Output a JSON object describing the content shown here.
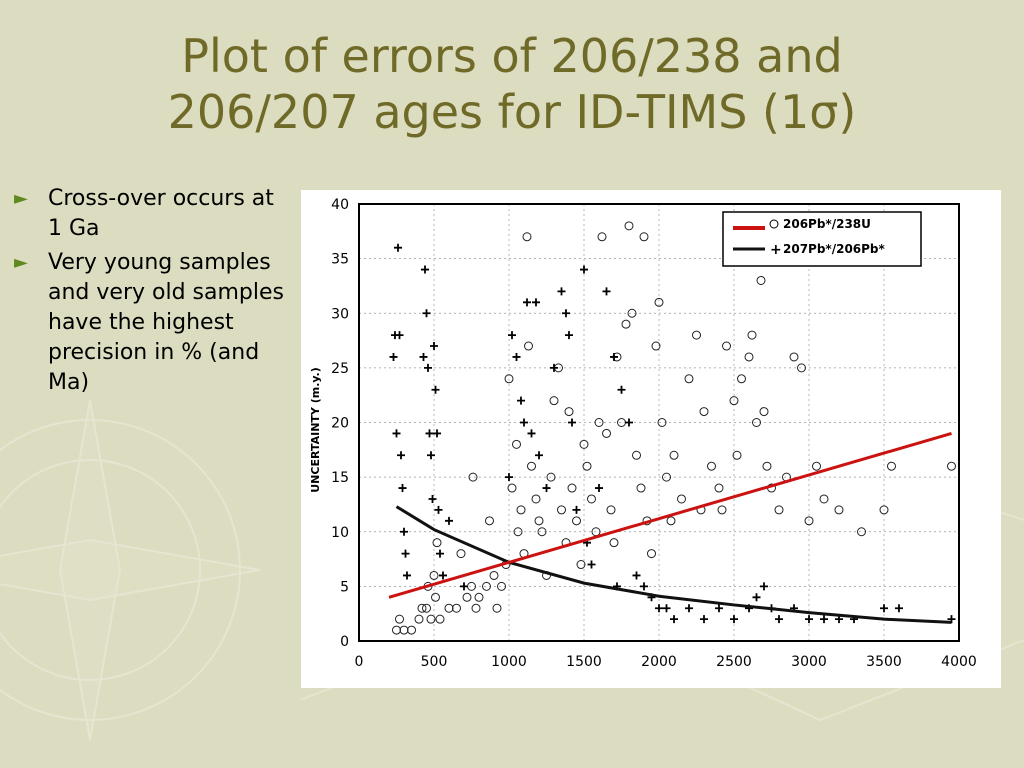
{
  "slide": {
    "title_line1": "Plot of errors of 206/238 and",
    "title_line2": "206/207 ages for ID-TIMS (1σ)",
    "bullets": [
      "Cross-over occurs at 1 Ga",
      "Very young samples and very old samples have the highest precision in % (and Ma)"
    ],
    "colors": {
      "title": "#6f6a28",
      "bullet_arrow": "#5f8a1e",
      "background": "#dcdcc0",
      "trend_238": "#cc1111",
      "trend_207": "#111111"
    },
    "icons": {
      "bullet": "triangle-right-icon",
      "background": "compass-watermark"
    }
  },
  "chart_data": {
    "type": "scatter",
    "title": "",
    "xlabel": "",
    "ylabel": "UNCERTAINTY (m.y.)",
    "xlim": [
      0,
      4000
    ],
    "ylim": [
      0,
      40
    ],
    "x_ticks": [
      "0",
      "500",
      "1000",
      "1500",
      "2000",
      "2500",
      "3000",
      "3500",
      "4000"
    ],
    "y_ticks": [
      "0",
      "5",
      "10",
      "15",
      "20",
      "25",
      "30",
      "35",
      "40"
    ],
    "legend_position": "top-right",
    "series": [
      {
        "name": "206Pb*/238U",
        "marker": "circle",
        "points": [
          [
            250,
            1
          ],
          [
            270,
            2
          ],
          [
            300,
            1
          ],
          [
            350,
            1
          ],
          [
            400,
            2
          ],
          [
            420,
            3
          ],
          [
            450,
            3
          ],
          [
            460,
            5
          ],
          [
            480,
            2
          ],
          [
            500,
            6
          ],
          [
            510,
            4
          ],
          [
            520,
            9
          ],
          [
            540,
            2
          ],
          [
            600,
            3
          ],
          [
            650,
            3
          ],
          [
            680,
            8
          ],
          [
            720,
            4
          ],
          [
            750,
            5
          ],
          [
            760,
            15
          ],
          [
            780,
            3
          ],
          [
            800,
            4
          ],
          [
            850,
            5
          ],
          [
            870,
            11
          ],
          [
            900,
            6
          ],
          [
            920,
            3
          ],
          [
            950,
            5
          ],
          [
            980,
            7
          ],
          [
            1000,
            24
          ],
          [
            1020,
            14
          ],
          [
            1050,
            18
          ],
          [
            1060,
            10
          ],
          [
            1080,
            12
          ],
          [
            1100,
            8
          ],
          [
            1120,
            37
          ],
          [
            1130,
            27
          ],
          [
            1150,
            16
          ],
          [
            1180,
            13
          ],
          [
            1200,
            11
          ],
          [
            1220,
            10
          ],
          [
            1250,
            6
          ],
          [
            1280,
            15
          ],
          [
            1300,
            22
          ],
          [
            1330,
            25
          ],
          [
            1350,
            12
          ],
          [
            1380,
            9
          ],
          [
            1400,
            21
          ],
          [
            1420,
            14
          ],
          [
            1450,
            11
          ],
          [
            1480,
            7
          ],
          [
            1500,
            18
          ],
          [
            1520,
            16
          ],
          [
            1550,
            13
          ],
          [
            1580,
            10
          ],
          [
            1600,
            20
          ],
          [
            1620,
            37
          ],
          [
            1650,
            19
          ],
          [
            1680,
            12
          ],
          [
            1700,
            9
          ],
          [
            1720,
            26
          ],
          [
            1750,
            20
          ],
          [
            1780,
            29
          ],
          [
            1800,
            38
          ],
          [
            1820,
            30
          ],
          [
            1850,
            17
          ],
          [
            1880,
            14
          ],
          [
            1900,
            37
          ],
          [
            1920,
            11
          ],
          [
            1950,
            8
          ],
          [
            1980,
            27
          ],
          [
            2000,
            31
          ],
          [
            2020,
            20
          ],
          [
            2050,
            15
          ],
          [
            2080,
            11
          ],
          [
            2100,
            17
          ],
          [
            2150,
            13
          ],
          [
            2200,
            24
          ],
          [
            2250,
            28
          ],
          [
            2280,
            12
          ],
          [
            2300,
            21
          ],
          [
            2350,
            16
          ],
          [
            2400,
            14
          ],
          [
            2420,
            12
          ],
          [
            2450,
            27
          ],
          [
            2500,
            22
          ],
          [
            2520,
            17
          ],
          [
            2550,
            24
          ],
          [
            2600,
            26
          ],
          [
            2620,
            28
          ],
          [
            2650,
            20
          ],
          [
            2680,
            33
          ],
          [
            2700,
            21
          ],
          [
            2720,
            16
          ],
          [
            2750,
            14
          ],
          [
            2800,
            12
          ],
          [
            2850,
            15
          ],
          [
            2900,
            26
          ],
          [
            2950,
            25
          ],
          [
            3000,
            11
          ],
          [
            3050,
            16
          ],
          [
            3100,
            13
          ],
          [
            3200,
            12
          ],
          [
            3350,
            10
          ],
          [
            3500,
            12
          ],
          [
            3550,
            16
          ],
          [
            3950,
            16
          ]
        ]
      },
      {
        "name": "207Pb*/206Pb*",
        "marker": "plus",
        "points": [
          [
            230,
            26
          ],
          [
            240,
            28
          ],
          [
            250,
            19
          ],
          [
            260,
            36
          ],
          [
            270,
            28
          ],
          [
            280,
            17
          ],
          [
            290,
            14
          ],
          [
            300,
            10
          ],
          [
            310,
            8
          ],
          [
            320,
            6
          ],
          [
            430,
            26
          ],
          [
            440,
            34
          ],
          [
            450,
            30
          ],
          [
            460,
            25
          ],
          [
            470,
            19
          ],
          [
            480,
            17
          ],
          [
            490,
            13
          ],
          [
            500,
            27
          ],
          [
            510,
            23
          ],
          [
            520,
            19
          ],
          [
            530,
            12
          ],
          [
            540,
            8
          ],
          [
            560,
            6
          ],
          [
            600,
            11
          ],
          [
            700,
            5
          ],
          [
            1000,
            15
          ],
          [
            1020,
            28
          ],
          [
            1050,
            26
          ],
          [
            1080,
            22
          ],
          [
            1100,
            20
          ],
          [
            1120,
            31
          ],
          [
            1150,
            19
          ],
          [
            1180,
            31
          ],
          [
            1200,
            17
          ],
          [
            1250,
            14
          ],
          [
            1300,
            25
          ],
          [
            1350,
            32
          ],
          [
            1380,
            30
          ],
          [
            1400,
            28
          ],
          [
            1420,
            20
          ],
          [
            1450,
            12
          ],
          [
            1500,
            34
          ],
          [
            1520,
            9
          ],
          [
            1550,
            7
          ],
          [
            1600,
            14
          ],
          [
            1650,
            32
          ],
          [
            1700,
            26
          ],
          [
            1720,
            5
          ],
          [
            1750,
            23
          ],
          [
            1800,
            20
          ],
          [
            1850,
            6
          ],
          [
            1900,
            5
          ],
          [
            1950,
            4
          ],
          [
            2000,
            3
          ],
          [
            2050,
            3
          ],
          [
            2100,
            2
          ],
          [
            2200,
            3
          ],
          [
            2300,
            2
          ],
          [
            2400,
            3
          ],
          [
            2500,
            2
          ],
          [
            2600,
            3
          ],
          [
            2650,
            4
          ],
          [
            2700,
            5
          ],
          [
            2750,
            3
          ],
          [
            2800,
            2
          ],
          [
            2900,
            3
          ],
          [
            3000,
            2
          ],
          [
            3100,
            2
          ],
          [
            3200,
            2
          ],
          [
            3300,
            2
          ],
          [
            3500,
            3
          ],
          [
            3600,
            3
          ],
          [
            3950,
            2
          ]
        ]
      }
    ],
    "trendlines": [
      {
        "series": "206Pb*/238U",
        "x": [
          200,
          3950
        ],
        "y": [
          4,
          19
        ]
      },
      {
        "series": "207Pb*/206Pb*",
        "x": [
          250,
          500,
          1000,
          1500,
          2000,
          2500,
          3000,
          3500,
          3950
        ],
        "y": [
          12.3,
          10.2,
          7.2,
          5.3,
          4.1,
          3.3,
          2.6,
          2.0,
          1.7
        ]
      }
    ]
  }
}
